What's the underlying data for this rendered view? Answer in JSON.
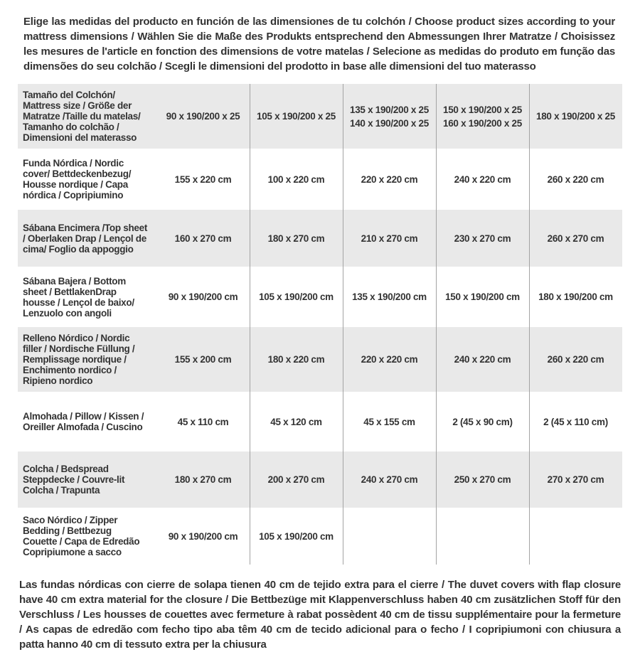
{
  "page": {
    "intro": "Elige las medidas del producto en función de las dimensiones de tu colchón / Choose product sizes according to your mattress dimensions / Wählen Sie die Maße des Produkts entsprechend den Abmessungen Ihrer Matratze / Choisissez les mesures de l'article en fonction des dimensions de votre matelas / Selecione as medidas do produto em função das dimensões do seu colchão / Scegli le dimensioni del prodotto in base alle dimensioni del tuo materasso",
    "footnote": "Las fundas nórdicas con cierre de solapa tienen 40 cm de tejido extra para el cierre / The duvet covers with flap closure have 40 cm extra material for the closure / Die Bettbezüge mit Klappenverschluss haben 40 cm zusätzlichen Stoff für den Verschluss / Les housses de couettes avec fermeture à rabat possèdent 40 cm de tissu supplémentaire pour la fermeture / As capas de edredão com fecho tipo aba têm 40 cm de tecido adicional para o fecho / I copripiumoni con chiusura a patta hanno 40 cm di tessuto extra per la chiusura"
  },
  "table": {
    "rows": [
      {
        "label": "Tamaño del Colchón/ Mattress size / Größe der Matratze /Taille du matelas/ Tamanho do colchão / Dimensioni del materasso",
        "values": [
          "90 x 190/200 x 25",
          "105 x 190/200 x 25",
          "135 x 190/200 x 25\n140 x 190/200 x 25",
          "150 x 190/200 x 25\n160 x 190/200 x 25",
          "180 x 190/200 x 25"
        ]
      },
      {
        "label": "Funda Nórdica /  Nordic cover/ Bettdeckenbezug/ Housse nordique  / Capa nórdica / Copripiumino",
        "values": [
          "155 x 220 cm",
          "100 x 220 cm",
          "220 x 220 cm",
          "240 x 220 cm",
          "260 x 220 cm"
        ]
      },
      {
        "label": "Sábana Encimera /Top sheet / Oberlaken Drap / Lençol de cima/ Foglio da appoggio",
        "values": [
          "160 x 270 cm",
          "180 x 270 cm",
          "210 x 270 cm",
          "230 x 270 cm",
          "260 x 270 cm"
        ]
      },
      {
        "label": "Sábana Bajera / Bottom sheet / BettlakenDrap housse / Lençol de baixo/ Lenzuolo con angoli",
        "values": [
          "90 x 190/200 cm",
          "105 x 190/200 cm",
          "135 x 190/200 cm",
          "150 x 190/200 cm",
          "180 x 190/200 cm"
        ]
      },
      {
        "label": "Relleno Nórdico / Nordic filler / Nordische Füllung / Remplissage nordique / Enchimento nordico / Ripieno nordico",
        "values": [
          "155 x 200 cm",
          "180 x 220 cm",
          "220 x 220 cm",
          "240 x 220 cm",
          "260 x 220 cm"
        ]
      },
      {
        "label": "Almohada  / Pillow / Kissen / Oreiller Almofada / Cuscino",
        "values": [
          "45 x 110 cm",
          "45 x 120 cm",
          "45 x 155 cm",
          "2 (45 x 90 cm)",
          "2 (45 x 110 cm)"
        ]
      },
      {
        "label": "Colcha / Bedspread Steppdecke / Couvre-lit Colcha / Trapunta",
        "values": [
          "180 x 270 cm",
          "200 x 270 cm",
          "240 x 270 cm",
          "250 x 270 cm",
          "270 x 270 cm"
        ]
      },
      {
        "label": "Saco Nórdico / Zipper Bedding / Bettbezug Couette  / Capa de Edredão Copripiumone a sacco",
        "values": [
          "90 x 190/200 cm",
          "105 x 190/200 cm",
          "",
          "",
          ""
        ]
      }
    ]
  },
  "colors": {
    "row_shade": "#e9e9e9",
    "divider": "#a3a3a3",
    "text": "#333333"
  }
}
